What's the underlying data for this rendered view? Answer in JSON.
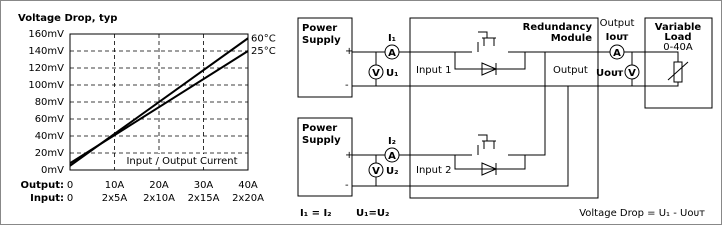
{
  "chart_data": {
    "type": "line",
    "title": "Voltage Drop, typ",
    "x": [
      0,
      40
    ],
    "series": [
      {
        "name": "60°C",
        "color": "#000000",
        "values": [
          5,
          155
        ]
      },
      {
        "name": "25°C",
        "color": "#000000",
        "values": [
          8,
          140
        ]
      }
    ],
    "xlim": [
      0,
      40
    ],
    "xticks": [
      0,
      {
        "value": 10,
        "label": "10A"
      },
      {
        "value": 20,
        "label": "20A"
      },
      {
        "value": 30,
        "label": "30A"
      },
      {
        "value": 40,
        "label": "40A"
      }
    ],
    "input_ticks": [
      0,
      {
        "value": 10,
        "label": "2x5A"
      },
      {
        "value": 20,
        "label": "2x10A"
      },
      {
        "value": 30,
        "label": "2x15A"
      },
      {
        "value": 40,
        "label": "2x20A"
      }
    ],
    "output_row_label": "Output:",
    "input_row_label": "Input:",
    "annotation": "Input / Output Current",
    "ylim": [
      0,
      160
    ],
    "yticks": [
      {
        "value": 0,
        "label": "0mV"
      },
      {
        "value": 20,
        "label": "20mV"
      },
      {
        "value": 40,
        "label": "40mV"
      },
      {
        "value": 60,
        "label": "60mV"
      },
      {
        "value": 80,
        "label": "80mV"
      },
      {
        "value": 100,
        "label": "100mV"
      },
      {
        "value": 120,
        "label": "120mV"
      },
      {
        "value": 140,
        "label": "140mV"
      },
      {
        "value": 160,
        "label": "160mV"
      }
    ],
    "grid": true
  },
  "diagram": {
    "supply1": [
      "Power",
      "Supply"
    ],
    "supply2": [
      "Power",
      "Supply"
    ],
    "plus": "+",
    "minus": "-",
    "ammeter": "A",
    "voltmeter": "V",
    "i1": "I₁",
    "u1": "U₁",
    "i2": "I₂",
    "u2": "U₂",
    "input1": "Input 1",
    "input2": "Input 2",
    "module": [
      "Redundancy",
      "Module"
    ],
    "module_output": "Output",
    "output": "Output",
    "iout": "Iᴏᴜᴛ",
    "uout": "Uᴏᴜᴛ",
    "load": [
      "Variable",
      "Load"
    ],
    "load_range": "0-40A",
    "eq1": "I₁ = I₂",
    "eq2": "U₁=U₂",
    "formula": "Voltage Drop  = U₁ - Uᴏᴜᴛ"
  }
}
